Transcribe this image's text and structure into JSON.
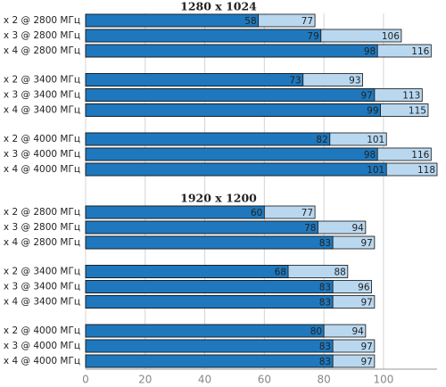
{
  "chart_data": [
    {
      "type": "bar",
      "title": "1280 x 1024",
      "categories": [
        "x 2 @ 2800 МГц",
        "x 3 @ 2800 МГц",
        "x 4 @ 2800 МГц",
        "x 2 @ 3400 МГц",
        "x 3 @ 3400 МГц",
        "x 4 @ 3400 МГц",
        "x 2 @ 4000 МГц",
        "x 3 @ 4000 МГц",
        "x 4 @ 4000 МГц"
      ],
      "series": [
        {
          "color": "#b9d8f0",
          "values": [
            77,
            106,
            116,
            93,
            113,
            115,
            101,
            116,
            118
          ]
        },
        {
          "color": "#1f78bd",
          "values": [
            58,
            79,
            98,
            73,
            97,
            99,
            82,
            98,
            101
          ]
        }
      ],
      "xlim": [
        0,
        118
      ]
    },
    {
      "type": "bar",
      "title": "1920 x 1200",
      "categories": [
        "x 2 @ 2800 МГц",
        "x 3 @ 2800 МГц",
        "x 4 @ 2800 МГц",
        "x 2 @ 3400 МГц",
        "x 3 @ 3400 МГц",
        "x 4 @ 3400 МГц",
        "x 2 @ 4000 МГц",
        "x 3 @ 4000 МГц",
        "x 4 @ 4000 МГц"
      ],
      "series": [
        {
          "color": "#b9d8f0",
          "values": [
            77,
            94,
            97,
            88,
            96,
            97,
            94,
            97,
            97
          ]
        },
        {
          "color": "#1f78bd",
          "values": [
            60,
            78,
            83,
            68,
            83,
            83,
            80,
            83,
            83
          ]
        }
      ],
      "xlim": [
        0,
        118
      ],
      "xticks": [
        0,
        20,
        40,
        60,
        80,
        100
      ],
      "grid": true
    }
  ]
}
